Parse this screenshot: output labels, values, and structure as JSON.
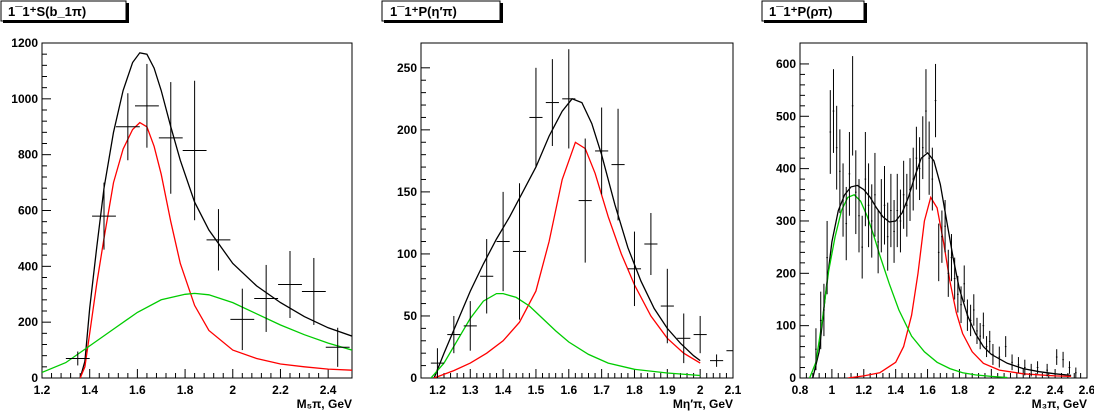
{
  "chart_data": [
    {
      "type": "line",
      "title": "1¯1⁺S(b_1π)",
      "xlabel": "M₅π, GeV",
      "ylabel": "",
      "xlim": [
        1.2,
        2.5
      ],
      "ylim": [
        0,
        1200
      ],
      "xticks": [
        1.2,
        1.4,
        1.6,
        1.8,
        2.0,
        2.2,
        2.4
      ],
      "xtick_labels": [
        "1.2",
        "1.4",
        "1.6",
        "1.8",
        "2",
        "2.2",
        "2.4"
      ],
      "yticks": [
        0,
        200,
        400,
        600,
        800,
        1000,
        1200
      ],
      "ytick_labels": [
        "0",
        "200",
        "400",
        "600",
        "800",
        "1000",
        "1200"
      ],
      "series": [
        {
          "color": "#000000",
          "x": [
            1.36,
            1.38,
            1.4,
            1.43,
            1.46,
            1.5,
            1.54,
            1.58,
            1.61,
            1.64,
            1.67,
            1.7,
            1.74,
            1.78,
            1.84,
            1.9,
            2.0,
            2.1,
            2.2,
            2.3,
            2.4,
            2.5
          ],
          "y": [
            0,
            60,
            250,
            470,
            680,
            880,
            1030,
            1130,
            1165,
            1160,
            1110,
            1030,
            900,
            780,
            630,
            530,
            410,
            330,
            270,
            220,
            180,
            150
          ]
        },
        {
          "color": "#ff0000",
          "x": [
            1.36,
            1.38,
            1.4,
            1.43,
            1.46,
            1.5,
            1.54,
            1.58,
            1.61,
            1.64,
            1.67,
            1.7,
            1.74,
            1.78,
            1.84,
            1.9,
            2.0,
            2.1,
            2.2,
            2.3,
            2.4,
            2.5
          ],
          "y": [
            0,
            40,
            160,
            340,
            500,
            700,
            820,
            890,
            915,
            900,
            830,
            730,
            560,
            410,
            260,
            170,
            100,
            70,
            50,
            40,
            32,
            28
          ]
        },
        {
          "color": "#00cc00",
          "x": [
            1.2,
            1.3,
            1.4,
            1.5,
            1.6,
            1.7,
            1.8,
            1.84,
            1.9,
            2.0,
            2.1,
            2.2,
            2.3,
            2.4,
            2.5
          ],
          "y": [
            20,
            55,
            115,
            175,
            235,
            280,
            300,
            303,
            298,
            270,
            230,
            190,
            155,
            125,
            100
          ]
        }
      ],
      "points": [
        {
          "x": 1.35,
          "y": 70,
          "xerr": 0.05,
          "yerr": 25
        },
        {
          "x": 1.46,
          "y": 580,
          "xerr": 0.05,
          "yerr": 120
        },
        {
          "x": 1.56,
          "y": 900,
          "xerr": 0.05,
          "yerr": 120
        },
        {
          "x": 1.64,
          "y": 975,
          "xerr": 0.05,
          "yerr": 150
        },
        {
          "x": 1.74,
          "y": 860,
          "xerr": 0.05,
          "yerr": 200
        },
        {
          "x": 1.84,
          "y": 815,
          "xerr": 0.05,
          "yerr": 250
        },
        {
          "x": 1.94,
          "y": 495,
          "xerr": 0.05,
          "yerr": 110
        },
        {
          "x": 2.04,
          "y": 210,
          "xerr": 0.05,
          "yerr": 110
        },
        {
          "x": 2.14,
          "y": 285,
          "xerr": 0.05,
          "yerr": 120
        },
        {
          "x": 2.24,
          "y": 335,
          "xerr": 0.05,
          "yerr": 120
        },
        {
          "x": 2.34,
          "y": 310,
          "xerr": 0.05,
          "yerr": 120
        },
        {
          "x": 2.44,
          "y": 110,
          "xerr": 0.05,
          "yerr": 70
        }
      ]
    },
    {
      "type": "line",
      "title": "1¯1⁺P(η′π)",
      "xlabel": "Mη′π, GeV",
      "ylabel": "",
      "xlim": [
        1.15,
        2.1
      ],
      "ylim": [
        0,
        270
      ],
      "xticks": [
        1.2,
        1.3,
        1.4,
        1.5,
        1.6,
        1.7,
        1.8,
        1.9,
        2.0,
        2.1
      ],
      "xtick_labels": [
        "1.2",
        "1.3",
        "1.4",
        "1.5",
        "1.6",
        "1.7",
        "1.8",
        "1.9",
        "2",
        "2.1"
      ],
      "yticks": [
        0,
        50,
        100,
        150,
        200,
        250
      ],
      "ytick_labels": [
        "0",
        "50",
        "100",
        "150",
        "200",
        "250"
      ],
      "series": [
        {
          "color": "#000000",
          "x": [
            1.19,
            1.22,
            1.26,
            1.3,
            1.34,
            1.38,
            1.42,
            1.46,
            1.5,
            1.54,
            1.58,
            1.61,
            1.64,
            1.67,
            1.7,
            1.74,
            1.78,
            1.82,
            1.86,
            1.9,
            1.94,
            1.98,
            2.0
          ],
          "y": [
            0,
            20,
            45,
            70,
            92,
            112,
            130,
            150,
            170,
            195,
            215,
            225,
            222,
            205,
            180,
            140,
            105,
            78,
            56,
            40,
            28,
            18,
            14
          ]
        },
        {
          "color": "#ff0000",
          "x": [
            1.19,
            1.25,
            1.3,
            1.35,
            1.4,
            1.45,
            1.5,
            1.54,
            1.58,
            1.62,
            1.65,
            1.68,
            1.72,
            1.76,
            1.8,
            1.85,
            1.9,
            1.95,
            2.0
          ],
          "y": [
            0,
            6,
            12,
            20,
            30,
            45,
            70,
            110,
            160,
            190,
            185,
            165,
            130,
            100,
            75,
            50,
            32,
            20,
            12
          ]
        },
        {
          "color": "#00cc00",
          "x": [
            1.18,
            1.22,
            1.26,
            1.3,
            1.34,
            1.38,
            1.4,
            1.44,
            1.48,
            1.52,
            1.56,
            1.6,
            1.66,
            1.72,
            1.8,
            1.9,
            2.0
          ],
          "y": [
            0,
            12,
            30,
            48,
            62,
            68,
            68,
            65,
            58,
            48,
            38,
            29,
            19,
            12,
            7,
            4,
            2
          ]
        }
      ],
      "points": [
        {
          "x": 1.2,
          "y": 12,
          "xerr": 0.02,
          "yerr": 12
        },
        {
          "x": 1.25,
          "y": 35,
          "xerr": 0.02,
          "yerr": 15
        },
        {
          "x": 1.3,
          "y": 42,
          "xerr": 0.02,
          "yerr": 20
        },
        {
          "x": 1.35,
          "y": 82,
          "xerr": 0.02,
          "yerr": 30
        },
        {
          "x": 1.4,
          "y": 110,
          "xerr": 0.02,
          "yerr": 40
        },
        {
          "x": 1.45,
          "y": 102,
          "xerr": 0.02,
          "yerr": 55
        },
        {
          "x": 1.5,
          "y": 210,
          "xerr": 0.02,
          "yerr": 40
        },
        {
          "x": 1.55,
          "y": 222,
          "xerr": 0.02,
          "yerr": 35
        },
        {
          "x": 1.6,
          "y": 225,
          "xerr": 0.02,
          "yerr": 40
        },
        {
          "x": 1.65,
          "y": 143,
          "xerr": 0.02,
          "yerr": 50
        },
        {
          "x": 1.7,
          "y": 183,
          "xerr": 0.02,
          "yerr": 35
        },
        {
          "x": 1.75,
          "y": 172,
          "xerr": 0.02,
          "yerr": 45
        },
        {
          "x": 1.8,
          "y": 88,
          "xerr": 0.02,
          "yerr": 30
        },
        {
          "x": 1.85,
          "y": 108,
          "xerr": 0.02,
          "yerr": 25
        },
        {
          "x": 1.9,
          "y": 58,
          "xerr": 0.02,
          "yerr": 30
        },
        {
          "x": 1.95,
          "y": 32,
          "xerr": 0.02,
          "yerr": 20
        },
        {
          "x": 2.0,
          "y": 35,
          "xerr": 0.02,
          "yerr": 15
        },
        {
          "x": 2.05,
          "y": 14,
          "xerr": 0.02,
          "yerr": 5
        },
        {
          "x": 2.1,
          "y": 22,
          "xerr": 0.02,
          "yerr": 8
        }
      ]
    },
    {
      "type": "line",
      "title": "1¯1⁺P(ρπ)",
      "xlabel": "M₃π, GeV",
      "ylabel": "",
      "xlim": [
        0.8,
        2.6
      ],
      "ylim": [
        0,
        640
      ],
      "xticks": [
        0.8,
        1.0,
        1.2,
        1.4,
        1.6,
        1.8,
        2.0,
        2.2,
        2.4,
        2.6
      ],
      "xtick_labels": [
        "0.8",
        "1",
        "1.2",
        "1.4",
        "1.6",
        "1.8",
        "2",
        "2.2",
        "2.4",
        "2.6"
      ],
      "yticks": [
        0,
        100,
        200,
        300,
        400,
        500,
        600
      ],
      "ytick_labels": [
        "0",
        "100",
        "200",
        "300",
        "400",
        "500",
        "600"
      ],
      "series": [
        {
          "color": "#000000",
          "x": [
            0.88,
            0.92,
            0.96,
            1.0,
            1.04,
            1.08,
            1.12,
            1.16,
            1.2,
            1.24,
            1.28,
            1.32,
            1.36,
            1.4,
            1.44,
            1.48,
            1.52,
            1.56,
            1.6,
            1.64,
            1.68,
            1.72,
            1.76,
            1.8,
            1.85,
            1.9,
            1.95,
            2.0,
            2.1,
            2.2,
            2.3,
            2.4,
            2.5
          ],
          "y": [
            0,
            50,
            160,
            260,
            320,
            350,
            365,
            368,
            360,
            345,
            325,
            308,
            298,
            300,
            315,
            345,
            385,
            420,
            430,
            415,
            370,
            300,
            230,
            170,
            120,
            85,
            60,
            45,
            28,
            18,
            12,
            8,
            5
          ]
        },
        {
          "color": "#ff0000",
          "x": [
            1.1,
            1.2,
            1.3,
            1.4,
            1.45,
            1.5,
            1.54,
            1.58,
            1.62,
            1.66,
            1.7,
            1.74,
            1.78,
            1.82,
            1.88,
            1.95,
            2.05,
            2.2,
            2.4,
            2.5
          ],
          "y": [
            0,
            4,
            10,
            30,
            60,
            120,
            200,
            300,
            345,
            325,
            260,
            185,
            125,
            85,
            50,
            28,
            15,
            8,
            4,
            3
          ]
        },
        {
          "color": "#00cc00",
          "x": [
            0.86,
            0.9,
            0.94,
            0.98,
            1.02,
            1.06,
            1.1,
            1.14,
            1.18,
            1.22,
            1.26,
            1.3,
            1.36,
            1.42,
            1.5,
            1.58,
            1.66,
            1.74,
            1.82,
            1.9,
            2.0,
            2.1
          ],
          "y": [
            0,
            30,
            110,
            205,
            270,
            320,
            345,
            350,
            338,
            310,
            275,
            235,
            180,
            130,
            80,
            50,
            30,
            18,
            10,
            6,
            3,
            1
          ]
        }
      ],
      "points": [
        {
          "x": 0.9,
          "y": 55,
          "yerr": 40
        },
        {
          "x": 0.93,
          "y": 110,
          "yerr": 55
        },
        {
          "x": 0.95,
          "y": 130,
          "yerr": 50
        },
        {
          "x": 0.97,
          "y": 230,
          "yerr": 70
        },
        {
          "x": 0.99,
          "y": 470,
          "yerr": 80
        },
        {
          "x": 1.01,
          "y": 510,
          "yerr": 80
        },
        {
          "x": 1.03,
          "y": 440,
          "yerr": 80
        },
        {
          "x": 1.05,
          "y": 395,
          "yerr": 80
        },
        {
          "x": 1.07,
          "y": 340,
          "yerr": 70
        },
        {
          "x": 1.09,
          "y": 295,
          "yerr": 70
        },
        {
          "x": 1.11,
          "y": 390,
          "yerr": 80
        },
        {
          "x": 1.13,
          "y": 520,
          "yerr": 95
        },
        {
          "x": 1.15,
          "y": 355,
          "yerr": 80
        },
        {
          "x": 1.17,
          "y": 310,
          "yerr": 70
        },
        {
          "x": 1.19,
          "y": 250,
          "yerr": 60
        },
        {
          "x": 1.21,
          "y": 380,
          "yerr": 90
        },
        {
          "x": 1.23,
          "y": 330,
          "yerr": 80
        },
        {
          "x": 1.25,
          "y": 300,
          "yerr": 70
        },
        {
          "x": 1.27,
          "y": 350,
          "yerr": 80
        },
        {
          "x": 1.29,
          "y": 260,
          "yerr": 60
        },
        {
          "x": 1.31,
          "y": 310,
          "yerr": 70
        },
        {
          "x": 1.33,
          "y": 330,
          "yerr": 75
        },
        {
          "x": 1.35,
          "y": 270,
          "yerr": 65
        },
        {
          "x": 1.37,
          "y": 320,
          "yerr": 70
        },
        {
          "x": 1.39,
          "y": 280,
          "yerr": 60
        },
        {
          "x": 1.41,
          "y": 320,
          "yerr": 70
        },
        {
          "x": 1.43,
          "y": 300,
          "yerr": 60
        },
        {
          "x": 1.45,
          "y": 350,
          "yerr": 65
        },
        {
          "x": 1.47,
          "y": 330,
          "yerr": 60
        },
        {
          "x": 1.49,
          "y": 360,
          "yerr": 60
        },
        {
          "x": 1.51,
          "y": 380,
          "yerr": 60
        },
        {
          "x": 1.53,
          "y": 420,
          "yerr": 60
        },
        {
          "x": 1.55,
          "y": 400,
          "yerr": 60
        },
        {
          "x": 1.57,
          "y": 440,
          "yerr": 60
        },
        {
          "x": 1.59,
          "y": 510,
          "yerr": 80
        },
        {
          "x": 1.61,
          "y": 420,
          "yerr": 70
        },
        {
          "x": 1.63,
          "y": 380,
          "yerr": 60
        },
        {
          "x": 1.65,
          "y": 530,
          "yerr": 70
        },
        {
          "x": 1.67,
          "y": 240,
          "yerr": 55
        },
        {
          "x": 1.69,
          "y": 270,
          "yerr": 50
        },
        {
          "x": 1.71,
          "y": 290,
          "yerr": 50
        },
        {
          "x": 1.73,
          "y": 200,
          "yerr": 45
        },
        {
          "x": 1.75,
          "y": 230,
          "yerr": 45
        },
        {
          "x": 1.77,
          "y": 190,
          "yerr": 40
        },
        {
          "x": 1.79,
          "y": 160,
          "yerr": 35
        },
        {
          "x": 1.81,
          "y": 140,
          "yerr": 35
        },
        {
          "x": 1.83,
          "y": 180,
          "yerr": 35
        },
        {
          "x": 1.85,
          "y": 120,
          "yerr": 30
        },
        {
          "x": 1.87,
          "y": 110,
          "yerr": 30
        },
        {
          "x": 1.89,
          "y": 130,
          "yerr": 30
        },
        {
          "x": 1.91,
          "y": 90,
          "yerr": 25
        },
        {
          "x": 1.93,
          "y": 80,
          "yerr": 25
        },
        {
          "x": 1.95,
          "y": 100,
          "yerr": 25
        },
        {
          "x": 1.97,
          "y": 60,
          "yerr": 20
        },
        {
          "x": 1.99,
          "y": 70,
          "yerr": 20
        },
        {
          "x": 2.01,
          "y": 45,
          "yerr": 20
        },
        {
          "x": 2.05,
          "y": 40,
          "yerr": 20
        },
        {
          "x": 2.09,
          "y": 60,
          "yerr": 20
        },
        {
          "x": 2.13,
          "y": 30,
          "yerr": 15
        },
        {
          "x": 2.17,
          "y": 25,
          "yerr": 15
        },
        {
          "x": 2.21,
          "y": 20,
          "yerr": 15
        },
        {
          "x": 2.25,
          "y": 15,
          "yerr": 12
        },
        {
          "x": 2.29,
          "y": 20,
          "yerr": 12
        },
        {
          "x": 2.35,
          "y": 15,
          "yerr": 12
        },
        {
          "x": 2.41,
          "y": 40,
          "yerr": 15
        },
        {
          "x": 2.45,
          "y": 35,
          "yerr": 15
        },
        {
          "x": 2.49,
          "y": 20,
          "yerr": 12
        },
        {
          "x": 2.53,
          "y": 10,
          "yerr": 10
        }
      ]
    }
  ]
}
